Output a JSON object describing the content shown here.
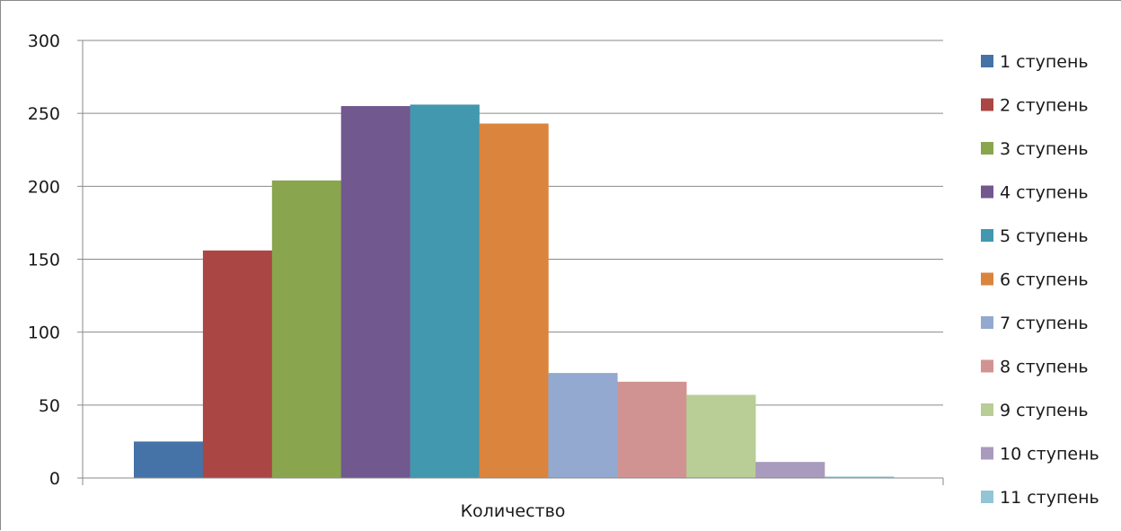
{
  "chart_data": {
    "type": "bar",
    "categories": [
      "Количество"
    ],
    "series": [
      {
        "name": "1 ступень",
        "values": [
          25
        ],
        "color": "#4572A7"
      },
      {
        "name": "2 ступень",
        "values": [
          156
        ],
        "color": "#AA4643"
      },
      {
        "name": "3 ступень",
        "values": [
          204
        ],
        "color": "#89A54E"
      },
      {
        "name": "4 ступень",
        "values": [
          255
        ],
        "color": "#71588F"
      },
      {
        "name": "5 ступень",
        "values": [
          256
        ],
        "color": "#4198AF"
      },
      {
        "name": "6 ступень",
        "values": [
          243
        ],
        "color": "#DB843D"
      },
      {
        "name": "7 ступень",
        "values": [
          72
        ],
        "color": "#93A9CF"
      },
      {
        "name": "8 ступень",
        "values": [
          66
        ],
        "color": "#D19392"
      },
      {
        "name": "9 ступень",
        "values": [
          57
        ],
        "color": "#B9CD96"
      },
      {
        "name": "10 ступень",
        "values": [
          11
        ],
        "color": "#A99BBD"
      },
      {
        "name": "11 ступень",
        "values": [
          1
        ],
        "color": "#92C5D5"
      }
    ],
    "ylim": [
      0,
      300
    ],
    "yticks": [
      "0",
      "50",
      "100",
      "150",
      "200",
      "250",
      "300"
    ],
    "grid": true,
    "legend_position": "right"
  }
}
